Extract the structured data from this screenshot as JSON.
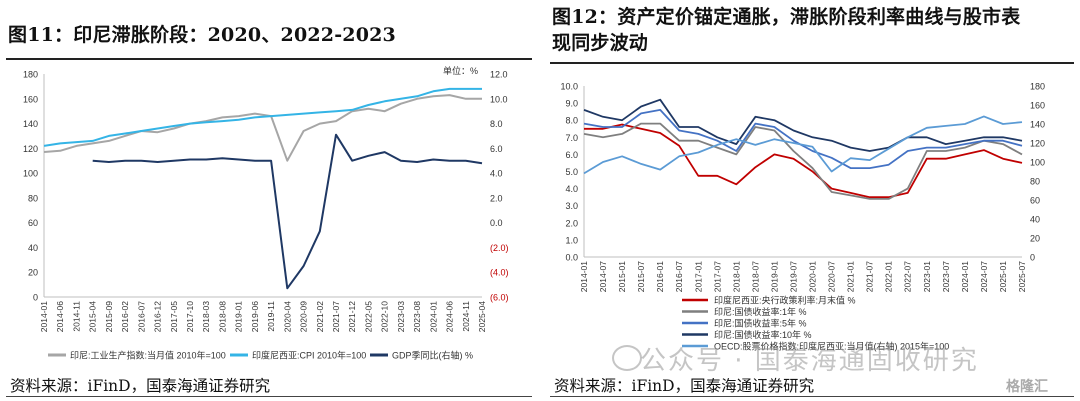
{
  "left_figure": {
    "title": "图11：印尼滞胀阶段：2020、2022-2023",
    "unit_label": "单位：%",
    "source": "资料来源：iFinD，国泰海通证券研究",
    "legend": [
      {
        "name": "印尼:工业生产指数:当月值 2010年=100",
        "color": "#a6a6a6"
      },
      {
        "name": "印度尼西亚:CPI 2010年=100",
        "color": "#34b4e6"
      },
      {
        "name": "GDP季同比(右轴) %",
        "color": "#1f3864"
      }
    ],
    "left_ticks": [
      "180",
      "160",
      "140",
      "120",
      "100",
      "80",
      "60",
      "40",
      "20",
      "0"
    ],
    "right_ticks": [
      "12.0",
      "10.0",
      "8.0",
      "6.0",
      "4.0",
      "2.0",
      "0.0",
      "(2.0)",
      "(4.0)",
      "(6.0)"
    ],
    "x_ticks": [
      "2014-01",
      "2014-06",
      "2014-11",
      "2015-04",
      "2015-09",
      "2016-02",
      "2016-07",
      "2016-12",
      "2017-05",
      "2017-10",
      "2018-03",
      "2018-08",
      "2019-01",
      "2019-06",
      "2019-11",
      "2020-04",
      "2020-09",
      "2021-02",
      "2021-07",
      "2021-12",
      "2022-05",
      "2022-10",
      "2023-03",
      "2023-08",
      "2024-01",
      "2024-06",
      "2024-11",
      "2025-04"
    ]
  },
  "right_figure": {
    "title_line1": "图12：资产定价锚定通胀，滞胀阶段利率曲线与股市表",
    "title_line2": "现同步波动",
    "source": "资料来源：iFinD，国泰海通证券研究",
    "left_ticks": [
      "10.0",
      "9.0",
      "8.0",
      "7.0",
      "6.0",
      "5.0",
      "4.0",
      "3.0",
      "2.0",
      "1.0",
      "0.0"
    ],
    "right_ticks": [
      "180",
      "160",
      "140",
      "120",
      "100",
      "80",
      "60",
      "40",
      "20",
      "0"
    ],
    "x_ticks": [
      "2014-01",
      "2014-07",
      "2015-01",
      "2015-07",
      "2016-01",
      "2016-07",
      "2017-01",
      "2017-07",
      "2018-01",
      "2018-07",
      "2019-01",
      "2019-07",
      "2020-01",
      "2020-07",
      "2021-01",
      "2021-07",
      "2022-01",
      "2022-07",
      "2023-01",
      "2023-07",
      "2024-01",
      "2024-07",
      "2025-01",
      "2025-07"
    ],
    "legend": [
      {
        "name": "印度尼西亚:央行政策利率:月末值 %",
        "color": "#c00000"
      },
      {
        "name": "印尼:国债收益率:1年 %",
        "color": "#7f7f7f"
      },
      {
        "name": "印尼:国债收益率:5年 %",
        "color": "#4472c4"
      },
      {
        "name": "印尼:国债收益率:10年 %",
        "color": "#1f3864"
      },
      {
        "name": "OECD:股票价格指数:印度尼西亚:当月值(右轴) 2015年=100",
        "color": "#5b9bd5"
      }
    ]
  },
  "watermark": "公众号 · 国泰海通固收研究",
  "logo_text": "格隆汇",
  "chart_data": [
    {
      "type": "line",
      "title": "印尼滞胀阶段：2020、2022-2023",
      "x": [
        "2014-01",
        "2014-06",
        "2014-11",
        "2015-04",
        "2015-09",
        "2016-02",
        "2016-07",
        "2016-12",
        "2017-05",
        "2017-10",
        "2018-03",
        "2018-08",
        "2019-01",
        "2019-06",
        "2019-11",
        "2020-04",
        "2020-09",
        "2021-02",
        "2021-07",
        "2021-12",
        "2022-05",
        "2022-10",
        "2023-03",
        "2023-08",
        "2024-01",
        "2024-06",
        "2024-11",
        "2025-04"
      ],
      "ylim_left": [
        0,
        180
      ],
      "ylim_right": [
        -6,
        12
      ],
      "series": [
        {
          "name": "印尼:工业生产指数:当月值 2010年=100",
          "axis": "left",
          "values": [
            117,
            118,
            122,
            124,
            126,
            130,
            134,
            133,
            136,
            140,
            142,
            145,
            146,
            148,
            146,
            110,
            134,
            140,
            142,
            150,
            152,
            150,
            156,
            160,
            162,
            163,
            160,
            160
          ]
        },
        {
          "name": "印度尼西亚:CPI 2010年=100",
          "axis": "left",
          "values": [
            122,
            124,
            125,
            126,
            130,
            132,
            134,
            136,
            138,
            140,
            141,
            142,
            143,
            145,
            146,
            147,
            148,
            149,
            150,
            151,
            155,
            158,
            160,
            162,
            166,
            168,
            168,
            168
          ]
        },
        {
          "name": "GDP季同比(右轴) %",
          "axis": "right",
          "values": [
            null,
            null,
            null,
            5.0,
            4.9,
            5.0,
            5.0,
            4.9,
            5.0,
            5.1,
            5.1,
            5.2,
            5.1,
            5.0,
            5.0,
            -5.3,
            -3.5,
            -0.7,
            7.1,
            5.0,
            5.4,
            5.7,
            5.0,
            4.9,
            5.1,
            5.0,
            5.0,
            4.8
          ]
        }
      ]
    },
    {
      "type": "line",
      "title": "资产定价锚定通胀，滞胀阶段利率曲线与股市表现同步波动",
      "x": [
        "2014-01",
        "2014-07",
        "2015-01",
        "2015-07",
        "2016-01",
        "2016-07",
        "2017-01",
        "2017-07",
        "2018-01",
        "2018-07",
        "2019-01",
        "2019-07",
        "2020-01",
        "2020-07",
        "2021-01",
        "2021-07",
        "2022-01",
        "2022-07",
        "2023-01",
        "2023-07",
        "2024-01",
        "2024-07",
        "2025-01",
        "2025-07"
      ],
      "ylim_left": [
        0,
        10
      ],
      "ylim_right": [
        0,
        180
      ],
      "series": [
        {
          "name": "印度尼西亚:央行政策利率:月末值 %",
          "axis": "left",
          "values": [
            7.5,
            7.5,
            7.75,
            7.5,
            7.25,
            6.5,
            4.75,
            4.75,
            4.25,
            5.25,
            6.0,
            5.75,
            5.0,
            4.0,
            3.75,
            3.5,
            3.5,
            3.75,
            5.75,
            5.75,
            6.0,
            6.25,
            5.75,
            5.5
          ]
        },
        {
          "name": "印尼:国债收益率:1年 %",
          "axis": "left",
          "values": [
            7.2,
            7.0,
            7.2,
            7.8,
            7.8,
            6.8,
            6.8,
            6.4,
            6.0,
            7.6,
            7.4,
            6.2,
            5.2,
            3.8,
            3.6,
            3.4,
            3.4,
            4.0,
            6.2,
            6.2,
            6.4,
            6.8,
            6.6,
            6.0
          ]
        },
        {
          "name": "印尼:国债收益率:5年 %",
          "axis": "left",
          "values": [
            7.8,
            7.6,
            7.6,
            8.4,
            8.6,
            7.4,
            7.2,
            6.8,
            6.2,
            7.8,
            7.6,
            6.8,
            6.2,
            5.8,
            5.2,
            5.2,
            5.4,
            6.2,
            6.4,
            6.4,
            6.6,
            6.8,
            6.8,
            6.5
          ]
        },
        {
          "name": "印尼:国债收益率:10年 %",
          "axis": "left",
          "values": [
            8.6,
            8.2,
            8.0,
            8.8,
            9.2,
            7.6,
            7.6,
            7.0,
            6.6,
            8.2,
            8.0,
            7.4,
            7.0,
            6.8,
            6.4,
            6.2,
            6.4,
            7.0,
            7.0,
            6.6,
            6.8,
            7.0,
            7.0,
            6.8
          ]
        },
        {
          "name": "OECD:股票价格指数:印度尼西亚:当月值(右轴) 2015年=100",
          "axis": "right",
          "values": [
            88,
            100,
            106,
            98,
            92,
            106,
            110,
            118,
            124,
            118,
            124,
            120,
            116,
            90,
            104,
            102,
            114,
            126,
            136,
            138,
            140,
            148,
            140,
            142
          ]
        }
      ]
    }
  ]
}
